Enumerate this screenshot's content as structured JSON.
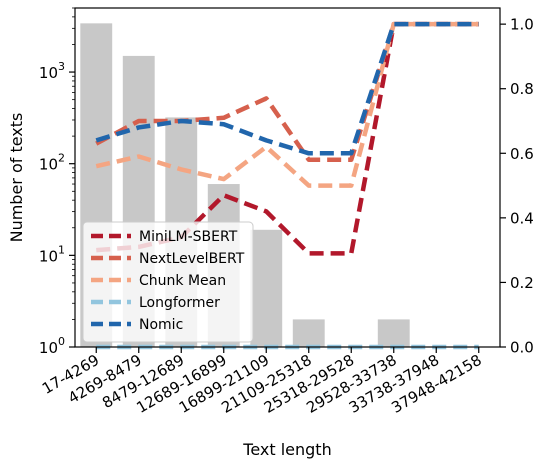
{
  "chart_data": {
    "type": "bar",
    "xlabel": "Text length",
    "ylabel_left": "Number of texts",
    "ylabel_right": "",
    "categories": [
      "17-4269",
      "4269-8479",
      "8479-12689",
      "12689-16899",
      "16899-21109",
      "21109-25318",
      "25318-29528",
      "29528-33738",
      "33738-37948",
      "37948-42158"
    ],
    "bars": {
      "name": "",
      "values": [
        3400,
        1500,
        320,
        60,
        19,
        2,
        0,
        2,
        0,
        0
      ],
      "color": "#c8c8c8",
      "scale": "log",
      "ylim": [
        1,
        5000
      ],
      "ticks": [
        {
          "value": 1,
          "base": "10",
          "exp": "0"
        },
        {
          "value": 10,
          "base": "10",
          "exp": "1"
        },
        {
          "value": 100,
          "base": "10",
          "exp": "2"
        },
        {
          "value": 1000,
          "base": "10",
          "exp": "3"
        }
      ]
    },
    "right_axis": {
      "ylim": [
        0,
        1.05
      ],
      "ticks": [
        "0.0",
        "0.2",
        "0.4",
        "0.6",
        "0.8",
        "1.0"
      ]
    },
    "series": [
      {
        "name": "MiniLM-SBERT",
        "color": "#b2182b",
        "values": [
          0.3,
          0.31,
          0.34,
          0.47,
          0.42,
          0.29,
          0.29,
          1.0,
          1.0,
          1.0
        ]
      },
      {
        "name": "NextLevelBERT",
        "color": "#d6604d",
        "values": [
          0.63,
          0.7,
          0.7,
          0.71,
          0.77,
          0.58,
          0.58,
          1.0,
          1.0,
          1.0
        ]
      },
      {
        "name": "Chunk Mean",
        "color": "#f4a582",
        "values": [
          0.56,
          0.59,
          0.55,
          0.52,
          0.62,
          0.5,
          0.5,
          1.0,
          1.0,
          1.0
        ]
      },
      {
        "name": "Longformer",
        "color": "#92c5de",
        "values": [
          0.0,
          0.0,
          0.0,
          0.0,
          0.0,
          0.0,
          0.0,
          0.0,
          0.0,
          0.0
        ]
      },
      {
        "name": "Nomic",
        "color": "#2166ac",
        "values": [
          0.64,
          0.68,
          0.7,
          0.69,
          0.64,
          0.6,
          0.6,
          1.0,
          1.0,
          1.0
        ]
      }
    ],
    "legend_position": "lower-left",
    "grid": false
  }
}
